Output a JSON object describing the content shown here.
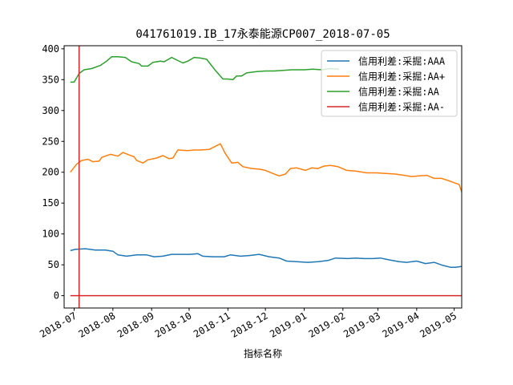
{
  "chart_data": {
    "type": "line",
    "title": "041761019.IB_17永泰能源CP007_2018-07-05",
    "xlabel": "指标名称",
    "ylabel": "",
    "xlim": [
      "2018-06-23",
      "2019-05-07"
    ],
    "ylim": [
      -20,
      405
    ],
    "x_ticks": [
      "2018-07",
      "2018-08",
      "2018-09",
      "2018-10",
      "2018-11",
      "2018-12",
      "2019-01",
      "2019-02",
      "2019-03",
      "2019-04",
      "2019-05"
    ],
    "x_tick_dates": [
      "2018-07-01",
      "2018-08-01",
      "2018-09-01",
      "2018-10-01",
      "2018-11-01",
      "2018-12-01",
      "2019-01-01",
      "2019-02-01",
      "2019-03-01",
      "2019-04-01",
      "2019-05-01"
    ],
    "y_ticks": [
      0,
      50,
      100,
      150,
      200,
      250,
      300,
      350,
      400
    ],
    "grid": false,
    "legend_position": "top-right",
    "vline": {
      "date": "2018-07-05",
      "color": "#d62728"
    },
    "series": [
      {
        "name": "信用利差:采掘:AAA",
        "color": "#1f77b4",
        "points": [
          [
            "2018-06-28",
            73
          ],
          [
            "2018-07-02",
            75
          ],
          [
            "2018-07-10",
            76
          ],
          [
            "2018-07-18",
            74
          ],
          [
            "2018-07-26",
            74
          ],
          [
            "2018-08-01",
            72
          ],
          [
            "2018-08-05",
            66
          ],
          [
            "2018-08-12",
            64
          ],
          [
            "2018-08-20",
            66
          ],
          [
            "2018-08-28",
            66
          ],
          [
            "2018-09-03",
            63
          ],
          [
            "2018-09-10",
            64
          ],
          [
            "2018-09-17",
            67
          ],
          [
            "2018-09-25",
            67
          ],
          [
            "2018-10-02",
            67
          ],
          [
            "2018-10-08",
            68
          ],
          [
            "2018-10-12",
            64
          ],
          [
            "2018-10-20",
            63
          ],
          [
            "2018-10-29",
            63
          ],
          [
            "2018-11-03",
            66
          ],
          [
            "2018-11-11",
            64
          ],
          [
            "2018-11-18",
            65
          ],
          [
            "2018-11-26",
            67
          ],
          [
            "2018-12-04",
            63
          ],
          [
            "2018-12-12",
            61
          ],
          [
            "2018-12-18",
            56
          ],
          [
            "2018-12-26",
            55
          ],
          [
            "2019-01-04",
            54
          ],
          [
            "2019-01-12",
            55
          ],
          [
            "2019-01-20",
            57
          ],
          [
            "2019-01-26",
            61
          ],
          [
            "2019-02-05",
            60
          ],
          [
            "2019-02-11",
            61
          ],
          [
            "2019-02-18",
            60
          ],
          [
            "2019-02-25",
            60
          ],
          [
            "2019-03-03",
            61
          ],
          [
            "2019-03-10",
            58
          ],
          [
            "2019-03-18",
            55
          ],
          [
            "2019-03-24",
            54
          ],
          [
            "2019-04-01",
            56
          ],
          [
            "2019-04-08",
            52
          ],
          [
            "2019-04-15",
            54
          ],
          [
            "2019-04-22",
            49
          ],
          [
            "2019-04-28",
            46
          ],
          [
            "2019-05-02",
            46
          ],
          [
            "2019-05-06",
            47
          ],
          [
            "2019-05-10",
            48
          ]
        ]
      },
      {
        "name": "信用利差:采掘:AA+",
        "color": "#ff7f0e",
        "points": [
          [
            "2018-06-28",
            200
          ],
          [
            "2018-07-03",
            213
          ],
          [
            "2018-07-07",
            219
          ],
          [
            "2018-07-12",
            221
          ],
          [
            "2018-07-16",
            217
          ],
          [
            "2018-07-21",
            218
          ],
          [
            "2018-07-23",
            224
          ],
          [
            "2018-07-30",
            229
          ],
          [
            "2018-08-05",
            226
          ],
          [
            "2018-08-09",
            232
          ],
          [
            "2018-08-14",
            228
          ],
          [
            "2018-08-18",
            225
          ],
          [
            "2018-08-20",
            219
          ],
          [
            "2018-08-25",
            215
          ],
          [
            "2018-08-29",
            220
          ],
          [
            "2018-09-05",
            223
          ],
          [
            "2018-09-10",
            227
          ],
          [
            "2018-09-15",
            222
          ],
          [
            "2018-09-18",
            223
          ],
          [
            "2018-09-22",
            236
          ],
          [
            "2018-09-30",
            235
          ],
          [
            "2018-10-05",
            236
          ],
          [
            "2018-10-10",
            236
          ],
          [
            "2018-10-17",
            237
          ],
          [
            "2018-10-23",
            243
          ],
          [
            "2018-10-26",
            246
          ],
          [
            "2018-10-30",
            230
          ],
          [
            "2018-11-04",
            215
          ],
          [
            "2018-11-09",
            216
          ],
          [
            "2018-11-13",
            209
          ],
          [
            "2018-11-20",
            206
          ],
          [
            "2018-11-26",
            205
          ],
          [
            "2018-12-01",
            203
          ],
          [
            "2018-12-07",
            198
          ],
          [
            "2018-12-12",
            194
          ],
          [
            "2018-12-17",
            197
          ],
          [
            "2018-12-21",
            206
          ],
          [
            "2018-12-26",
            207
          ],
          [
            "2019-01-02",
            203
          ],
          [
            "2019-01-07",
            207
          ],
          [
            "2019-01-12",
            206
          ],
          [
            "2019-01-17",
            210
          ],
          [
            "2019-01-22",
            211
          ],
          [
            "2019-01-28",
            209
          ],
          [
            "2019-02-04",
            203
          ],
          [
            "2019-02-11",
            202
          ],
          [
            "2019-02-20",
            199
          ],
          [
            "2019-02-28",
            199
          ],
          [
            "2019-03-07",
            198
          ],
          [
            "2019-03-15",
            197
          ],
          [
            "2019-03-22",
            195
          ],
          [
            "2019-03-28",
            193
          ],
          [
            "2019-04-03",
            194
          ],
          [
            "2019-04-09",
            195
          ],
          [
            "2019-04-15",
            190
          ],
          [
            "2019-04-21",
            190
          ],
          [
            "2019-04-27",
            186
          ],
          [
            "2019-05-01",
            183
          ],
          [
            "2019-05-05",
            180
          ],
          [
            "2019-05-08",
            162
          ],
          [
            "2019-05-12",
            158
          ],
          [
            "2019-05-15",
            156
          ],
          [
            "2019-05-18",
            155
          ]
        ]
      },
      {
        "name": "信用利差:采掘:AA",
        "color": "#2ca02c",
        "points": [
          [
            "2018-06-28",
            346
          ],
          [
            "2018-07-01",
            346
          ],
          [
            "2018-07-05",
            360
          ],
          [
            "2018-07-09",
            366
          ],
          [
            "2018-07-15",
            368
          ],
          [
            "2018-07-22",
            373
          ],
          [
            "2018-07-27",
            380
          ],
          [
            "2018-07-31",
            387
          ],
          [
            "2018-08-05",
            387
          ],
          [
            "2018-08-11",
            386
          ],
          [
            "2018-08-16",
            379
          ],
          [
            "2018-08-22",
            376
          ],
          [
            "2018-08-24",
            372
          ],
          [
            "2018-08-29",
            372
          ],
          [
            "2018-09-02",
            378
          ],
          [
            "2018-09-08",
            380
          ],
          [
            "2018-09-11",
            379
          ],
          [
            "2018-09-17",
            386
          ],
          [
            "2018-09-22",
            381
          ],
          [
            "2018-09-26",
            377
          ],
          [
            "2018-09-30",
            380
          ],
          [
            "2018-10-05",
            386
          ],
          [
            "2018-10-10",
            385
          ],
          [
            "2018-10-15",
            383
          ],
          [
            "2018-10-22",
            365
          ],
          [
            "2018-10-28",
            351
          ],
          [
            "2018-11-01",
            351
          ],
          [
            "2018-11-05",
            350
          ],
          [
            "2018-11-08",
            356
          ],
          [
            "2018-11-12",
            356
          ],
          [
            "2018-11-16",
            361
          ],
          [
            "2018-11-24",
            363
          ],
          [
            "2018-12-01",
            364
          ],
          [
            "2018-12-08",
            364
          ],
          [
            "2018-12-15",
            365
          ],
          [
            "2018-12-22",
            366
          ],
          [
            "2019-01-01",
            366
          ],
          [
            "2019-01-08",
            367
          ],
          [
            "2019-01-15",
            366
          ],
          [
            "2019-01-22",
            368
          ],
          [
            "2019-01-29",
            367
          ]
        ]
      },
      {
        "name": "信用利差:采掘:AA-",
        "color": "#d62728",
        "points": [
          [
            "2018-06-28",
            0
          ],
          [
            "2019-05-18",
            0
          ]
        ]
      }
    ]
  }
}
